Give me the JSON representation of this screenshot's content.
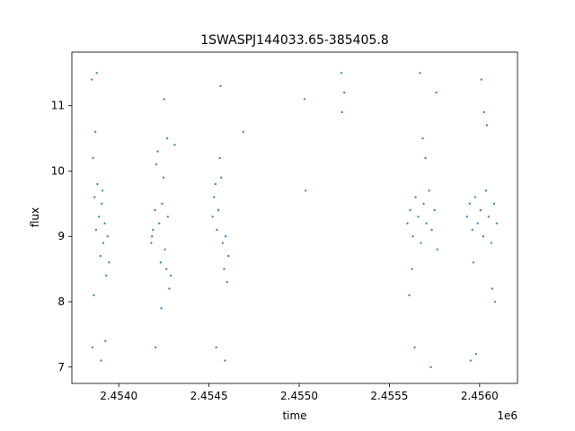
{
  "chart_data": {
    "type": "scatter",
    "title": "1SWASPJ144033.65-385405.8",
    "xlabel": "time",
    "ylabel": "flux",
    "x_offset_label": "1e6",
    "xlim": [
      2453740,
      2456210
    ],
    "ylim": [
      6.75,
      11.82
    ],
    "x_ticks": [
      {
        "value": 2454000,
        "label": "2.4540"
      },
      {
        "value": 2454500,
        "label": "2.4545"
      },
      {
        "value": 2455000,
        "label": "2.4550"
      },
      {
        "value": 2455500,
        "label": "2.4555"
      },
      {
        "value": 2456000,
        "label": "2.4560"
      }
    ],
    "y_ticks": [
      {
        "value": 7,
        "label": "7"
      },
      {
        "value": 8,
        "label": "8"
      },
      {
        "value": 9,
        "label": "9"
      },
      {
        "value": 10,
        "label": "10"
      },
      {
        "value": 11,
        "label": "11"
      }
    ],
    "grid": false,
    "marker_color": "#1f77b4",
    "series": [
      {
        "x": [
          2453850,
          2453858,
          2453866,
          2453874,
          2453882,
          2453890,
          2453898,
          2453906,
          2453914,
          2453922,
          2453930,
          2453938,
          2453946,
          2453854,
          2453878,
          2453902,
          2453926,
          2453870,
          2453910,
          2453862,
          2454180,
          2454190,
          2454200,
          2454208,
          2454216,
          2454224,
          2454232,
          2454240,
          2454248,
          2454256,
          2454264,
          2454272,
          2454280,
          2454288,
          2454204,
          2454236,
          2454268,
          2454310,
          2454184,
          2454252,
          2454520,
          2454528,
          2454536,
          2454544,
          2454552,
          2454560,
          2454568,
          2454576,
          2454584,
          2454592,
          2454600,
          2454608,
          2454540,
          2454564,
          2454588,
          2454690,
          2455030,
          2455036,
          2455234,
          2455238,
          2455250,
          2455600,
          2455615,
          2455630,
          2455645,
          2455660,
          2455675,
          2455690,
          2455705,
          2455720,
          2455735,
          2455750,
          2455765,
          2455610,
          2455640,
          2455670,
          2455700,
          2455730,
          2455760,
          2455625,
          2455685,
          2455930,
          2455945,
          2455960,
          2455975,
          2455990,
          2456005,
          2456020,
          2456035,
          2456050,
          2456065,
          2456080,
          2456095,
          2455950,
          2455980,
          2456010,
          2456040,
          2456070,
          2455965,
          2456025,
          2456085
        ],
        "y": [
          11.4,
          10.2,
          9.6,
          9.1,
          9.8,
          9.3,
          8.7,
          9.5,
          8.9,
          9.2,
          8.4,
          9.0,
          8.6,
          7.3,
          11.5,
          7.1,
          7.4,
          10.6,
          9.7,
          8.1,
          8.9,
          9.1,
          9.4,
          10.1,
          10.3,
          9.2,
          8.6,
          9.5,
          9.9,
          8.8,
          8.5,
          9.3,
          8.2,
          8.4,
          7.3,
          7.9,
          10.5,
          10.4,
          9.0,
          11.1,
          9.3,
          9.6,
          9.8,
          9.1,
          9.4,
          10.2,
          9.9,
          8.9,
          8.5,
          9.0,
          8.3,
          8.7,
          7.3,
          11.3,
          7.1,
          10.6,
          11.1,
          9.7,
          11.5,
          10.9,
          11.2,
          9.2,
          9.4,
          9.0,
          9.6,
          9.3,
          8.9,
          9.5,
          9.2,
          9.7,
          9.1,
          9.4,
          8.8,
          8.1,
          7.3,
          11.5,
          10.2,
          7.0,
          11.2,
          8.5,
          10.5,
          9.3,
          9.5,
          9.1,
          9.6,
          9.2,
          9.4,
          9.0,
          9.7,
          9.3,
          8.9,
          9.5,
          9.2,
          7.1,
          7.2,
          11.4,
          10.7,
          8.2,
          8.6,
          10.9,
          8.0
        ]
      }
    ]
  }
}
